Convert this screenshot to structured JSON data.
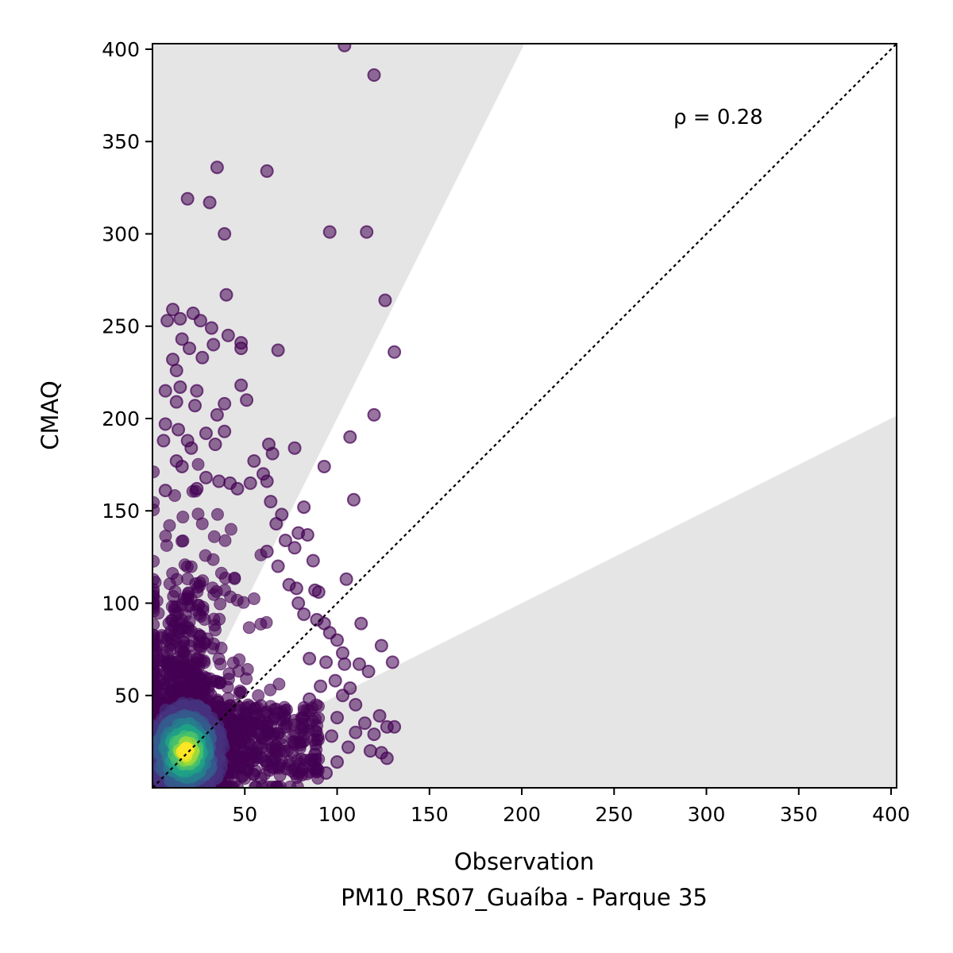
{
  "chart_data": {
    "type": "scatter",
    "xlabel": "Observation",
    "xlabel_sub": "PM10_RS07_Guaíba - Parque 35",
    "ylabel": "CMAQ",
    "annotation": "ρ = 0.28",
    "xlim": [
      0,
      403
    ],
    "ylim": [
      0,
      403
    ],
    "x_ticks": [
      50,
      100,
      150,
      200,
      250,
      300,
      350,
      400
    ],
    "y_ticks": [
      50,
      100,
      150,
      200,
      250,
      300,
      350,
      400
    ],
    "reference_line": {
      "style": "dotted",
      "equation": "y = x",
      "color": "#000000"
    },
    "shaded_regions": {
      "description": "outside factor-of-2 band (y > 2x and y < x/2)",
      "color": "#e5e5e5"
    },
    "colormap": "viridis",
    "point_color_low_density": "#440154",
    "point_color_high_density": "#fde725",
    "outlier_points": [
      {
        "x": 104,
        "y": 402
      },
      {
        "x": 120,
        "y": 386
      },
      {
        "x": 35,
        "y": 336
      },
      {
        "x": 62,
        "y": 334
      },
      {
        "x": 19,
        "y": 319
      },
      {
        "x": 31,
        "y": 317
      },
      {
        "x": 39,
        "y": 300
      },
      {
        "x": 96,
        "y": 301
      },
      {
        "x": 116,
        "y": 301
      },
      {
        "x": 40,
        "y": 267
      },
      {
        "x": 126,
        "y": 264
      },
      {
        "x": 11,
        "y": 259
      },
      {
        "x": 22,
        "y": 257
      },
      {
        "x": 8,
        "y": 253
      },
      {
        "x": 15,
        "y": 254
      },
      {
        "x": 26,
        "y": 253
      },
      {
        "x": 32,
        "y": 249
      },
      {
        "x": 41,
        "y": 245
      },
      {
        "x": 48,
        "y": 241
      },
      {
        "x": 48,
        "y": 238
      },
      {
        "x": 16,
        "y": 243
      },
      {
        "x": 20,
        "y": 238
      },
      {
        "x": 33,
        "y": 240
      },
      {
        "x": 27,
        "y": 233
      },
      {
        "x": 68,
        "y": 237
      },
      {
        "x": 131,
        "y": 236
      },
      {
        "x": 11,
        "y": 232
      },
      {
        "x": 13,
        "y": 226
      },
      {
        "x": 48,
        "y": 218
      },
      {
        "x": 7,
        "y": 215
      },
      {
        "x": 15,
        "y": 217
      },
      {
        "x": 24,
        "y": 215
      },
      {
        "x": 51,
        "y": 210
      },
      {
        "x": 13,
        "y": 209
      },
      {
        "x": 39,
        "y": 208
      },
      {
        "x": 23,
        "y": 207
      },
      {
        "x": 120,
        "y": 202
      },
      {
        "x": 35,
        "y": 202
      },
      {
        "x": 7,
        "y": 197
      },
      {
        "x": 14,
        "y": 194
      },
      {
        "x": 107,
        "y": 190
      },
      {
        "x": 29,
        "y": 192
      },
      {
        "x": 39,
        "y": 193
      },
      {
        "x": 6,
        "y": 188
      },
      {
        "x": 19,
        "y": 188
      },
      {
        "x": 21,
        "y": 184
      },
      {
        "x": 34,
        "y": 186
      },
      {
        "x": 63,
        "y": 186
      },
      {
        "x": 77,
        "y": 184
      },
      {
        "x": 65,
        "y": 181
      },
      {
        "x": 13,
        "y": 177
      },
      {
        "x": 55,
        "y": 177
      },
      {
        "x": 93,
        "y": 174
      },
      {
        "x": 16,
        "y": 174
      },
      {
        "x": 60,
        "y": 170
      },
      {
        "x": 29,
        "y": 168
      },
      {
        "x": 36,
        "y": 166
      },
      {
        "x": 42,
        "y": 165
      },
      {
        "x": 53,
        "y": 165
      },
      {
        "x": 62,
        "y": 166
      },
      {
        "x": 7,
        "y": 161
      },
      {
        "x": 24,
        "y": 162
      },
      {
        "x": 46,
        "y": 162
      },
      {
        "x": 109,
        "y": 156
      },
      {
        "x": 64,
        "y": 155
      },
      {
        "x": 82,
        "y": 152
      },
      {
        "x": 70,
        "y": 148
      },
      {
        "x": 67,
        "y": 143
      },
      {
        "x": 79,
        "y": 138
      },
      {
        "x": 84,
        "y": 137
      },
      {
        "x": 72,
        "y": 134
      },
      {
        "x": 77,
        "y": 130
      },
      {
        "x": 62,
        "y": 128
      },
      {
        "x": 87,
        "y": 123
      },
      {
        "x": 68,
        "y": 120
      },
      {
        "x": 74,
        "y": 110
      },
      {
        "x": 78,
        "y": 108
      },
      {
        "x": 105,
        "y": 113
      },
      {
        "x": 88,
        "y": 107
      },
      {
        "x": 90,
        "y": 106
      },
      {
        "x": 79,
        "y": 100
      },
      {
        "x": 82,
        "y": 94
      },
      {
        "x": 89,
        "y": 91
      },
      {
        "x": 93,
        "y": 89
      },
      {
        "x": 113,
        "y": 89
      },
      {
        "x": 96,
        "y": 84
      },
      {
        "x": 100,
        "y": 80
      },
      {
        "x": 124,
        "y": 77
      },
      {
        "x": 103,
        "y": 73
      },
      {
        "x": 104,
        "y": 67
      },
      {
        "x": 112,
        "y": 67
      },
      {
        "x": 130,
        "y": 68
      },
      {
        "x": 85,
        "y": 70
      },
      {
        "x": 94,
        "y": 68
      },
      {
        "x": 117,
        "y": 63
      },
      {
        "x": 99,
        "y": 58
      },
      {
        "x": 91,
        "y": 55
      },
      {
        "x": 107,
        "y": 54
      },
      {
        "x": 103,
        "y": 50
      },
      {
        "x": 85,
        "y": 48
      },
      {
        "x": 110,
        "y": 45
      },
      {
        "x": 123,
        "y": 39
      },
      {
        "x": 100,
        "y": 38
      },
      {
        "x": 115,
        "y": 35
      },
      {
        "x": 127,
        "y": 33
      },
      {
        "x": 131,
        "y": 33
      },
      {
        "x": 120,
        "y": 29
      },
      {
        "x": 110,
        "y": 30
      },
      {
        "x": 97,
        "y": 28
      },
      {
        "x": 118,
        "y": 20
      },
      {
        "x": 124,
        "y": 19
      },
      {
        "x": 127,
        "y": 16
      },
      {
        "x": 106,
        "y": 22
      },
      {
        "x": 100,
        "y": 14
      },
      {
        "x": 94,
        "y": 8
      },
      {
        "x": 88,
        "y": 18
      }
    ]
  }
}
